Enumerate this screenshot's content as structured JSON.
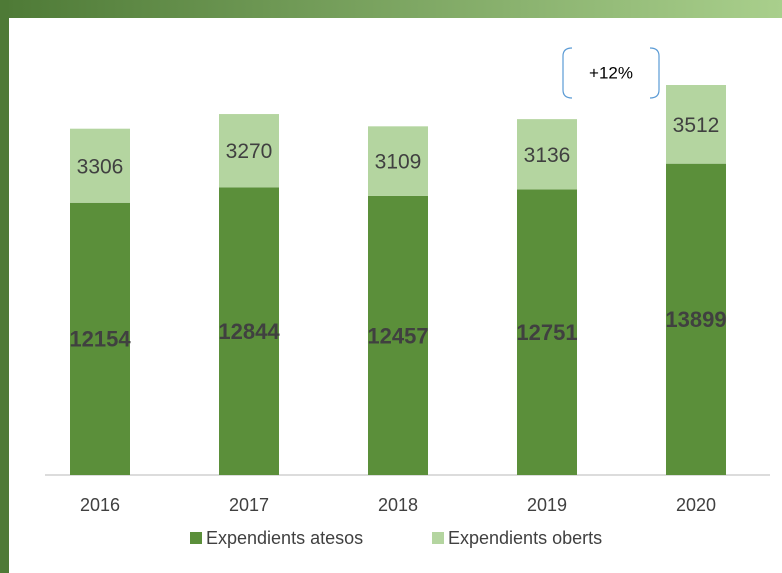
{
  "chart_data": {
    "type": "bar",
    "stacked": true,
    "categories": [
      "2016",
      "2017",
      "2018",
      "2019",
      "2020"
    ],
    "series": [
      {
        "name": "Expendients atesos",
        "color": "#5b8f3a",
        "values": [
          12154,
          12844,
          12457,
          12751,
          13899
        ]
      },
      {
        "name": "Expendients oberts",
        "color": "#b4d5a0",
        "values": [
          3306,
          3270,
          3109,
          3136,
          3512
        ]
      }
    ],
    "annotation": "+12%",
    "legend": "bottom"
  }
}
